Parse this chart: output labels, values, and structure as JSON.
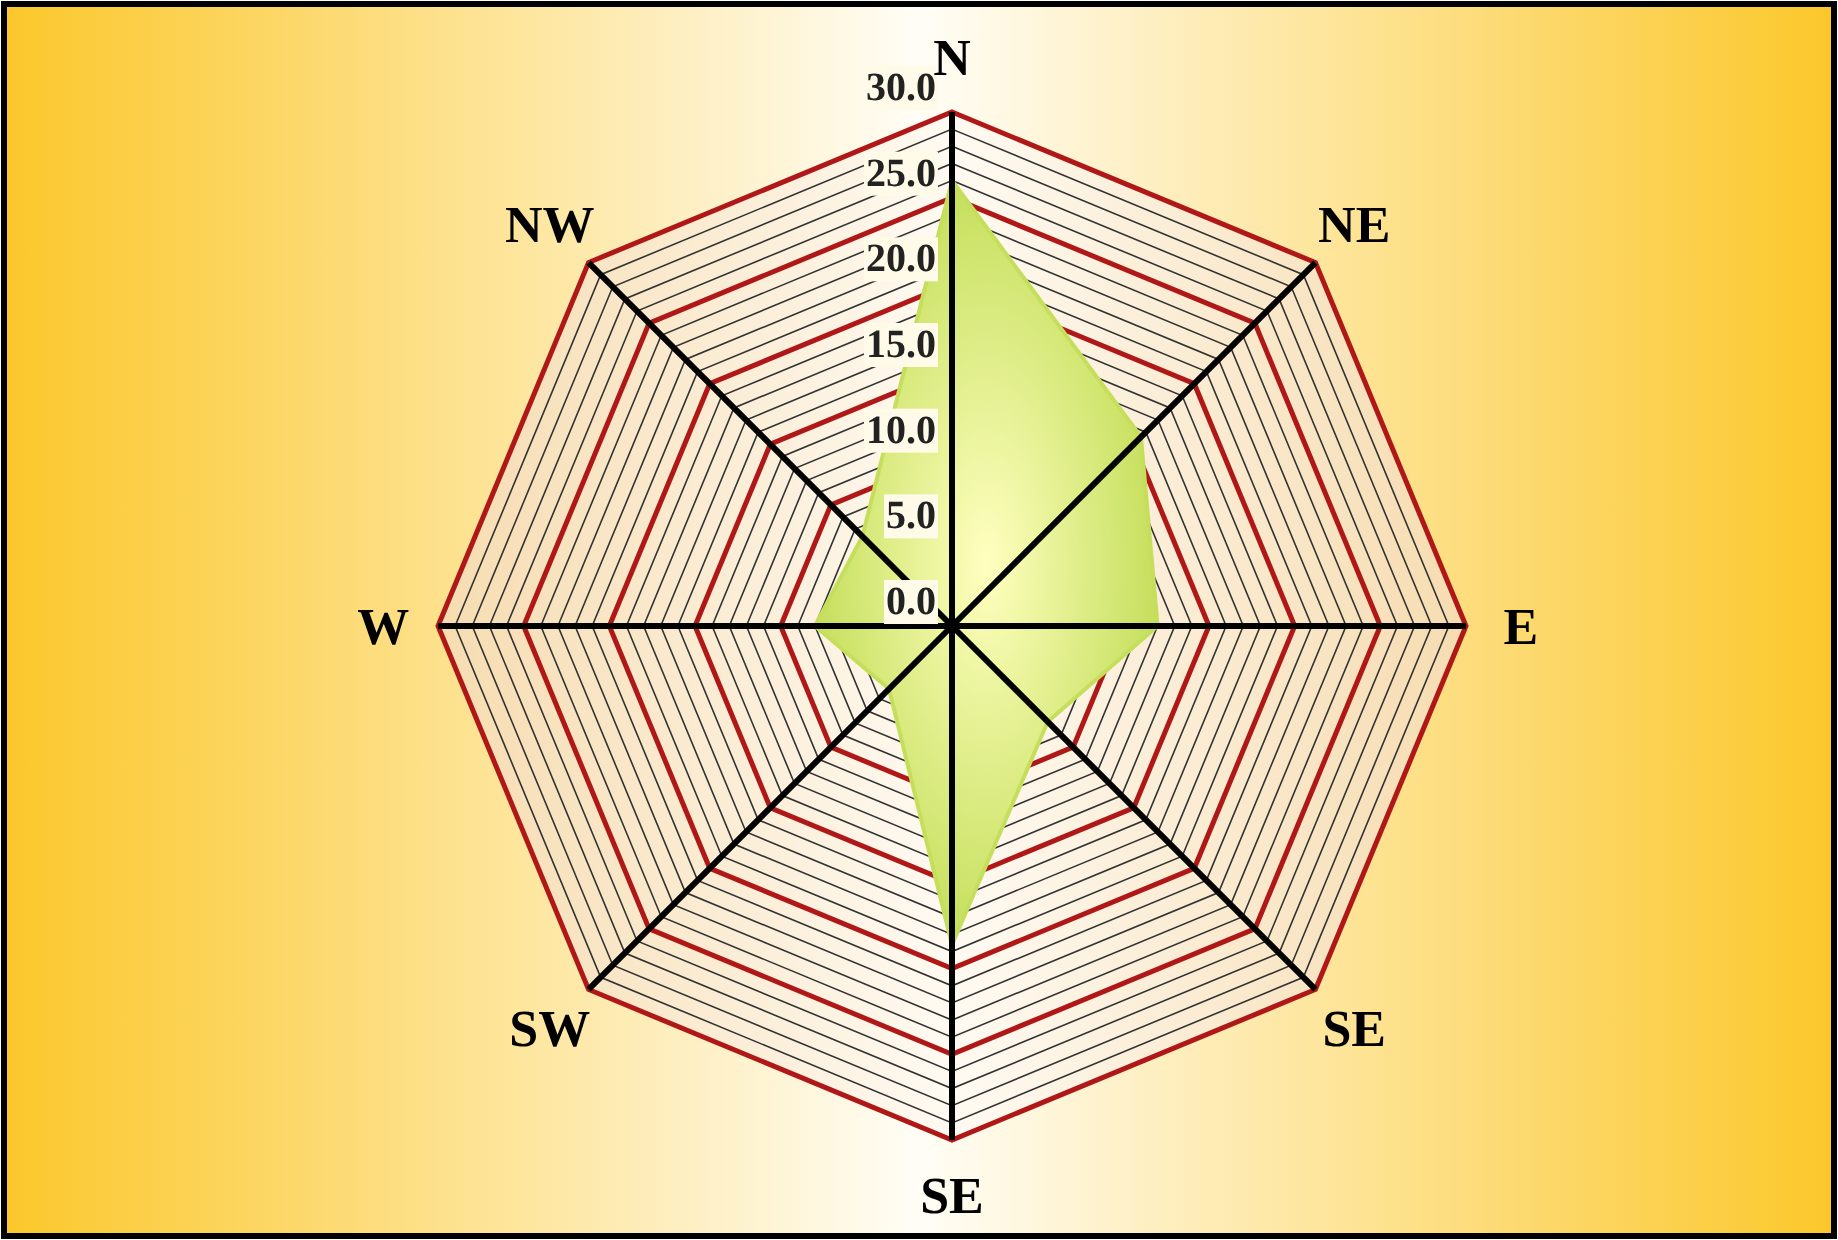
{
  "chart_data": {
    "type": "radar",
    "categories": [
      "N",
      "NE",
      "E",
      "SE",
      "SE",
      "SW",
      "W",
      "NW"
    ],
    "series": [
      {
        "color": "#c5df5c",
        "values": [
          26,
          15.6,
          12,
          7.9,
          18.6,
          5.2,
          8,
          7.4
        ]
      }
    ],
    "ylim": [
      0,
      30
    ],
    "yticks": [
      {
        "value": 0,
        "label": "0.0"
      },
      {
        "value": 5,
        "label": "5.0"
      },
      {
        "value": 10,
        "label": "10.0"
      },
      {
        "value": 15,
        "label": "15.0"
      },
      {
        "value": 20,
        "label": "20.0"
      },
      {
        "value": 25,
        "label": "25.0"
      },
      {
        "value": 30,
        "label": "30.0"
      }
    ],
    "grid": true
  }
}
